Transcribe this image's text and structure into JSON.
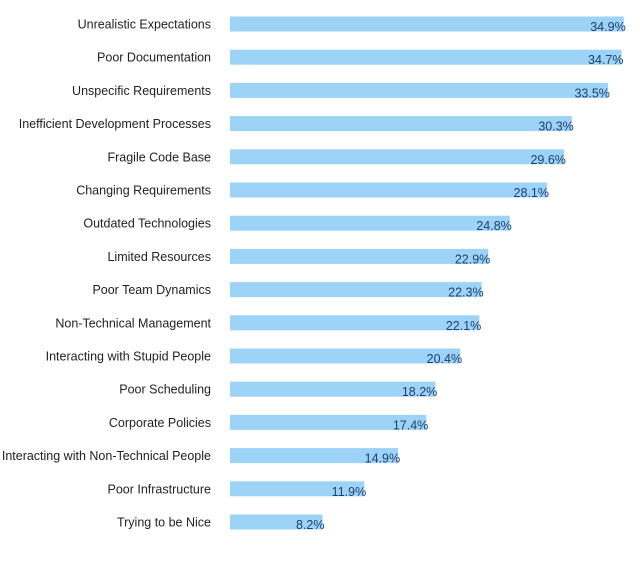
{
  "chart_data": {
    "type": "bar",
    "orientation": "horizontal",
    "categories": [
      "Unrealistic Expectations",
      "Poor Documentation",
      "Unspecific Requirements",
      "Inefficient Development Processes",
      "Fragile Code Base",
      "Changing Requirements",
      "Outdated Technologies",
      "Limited Resources",
      "Poor Team Dynamics",
      "Non-Technical Management",
      "Interacting with Stupid People",
      "Poor Scheduling",
      "Corporate Policies",
      "Interacting with Non-Technical People",
      "Poor Infrastructure",
      "Trying to be Nice"
    ],
    "values": [
      34.9,
      34.7,
      33.5,
      30.3,
      29.6,
      28.1,
      24.8,
      22.9,
      22.3,
      22.1,
      20.4,
      18.2,
      17.4,
      14.9,
      11.9,
      8.2
    ],
    "value_labels": [
      "34.9%",
      "34.7%",
      "33.5%",
      "30.3%",
      "29.6%",
      "28.1%",
      "24.8%",
      "22.9%",
      "22.3%",
      "22.1%",
      "20.4%",
      "18.2%",
      "17.4%",
      "14.9%",
      "11.9%",
      "8.2%"
    ],
    "unit": "%",
    "xlim": [
      0,
      35.9
    ],
    "grid": false,
    "legend": "none",
    "bar_color": "#9dd3f7",
    "label_color": "#1f3f6e"
  }
}
